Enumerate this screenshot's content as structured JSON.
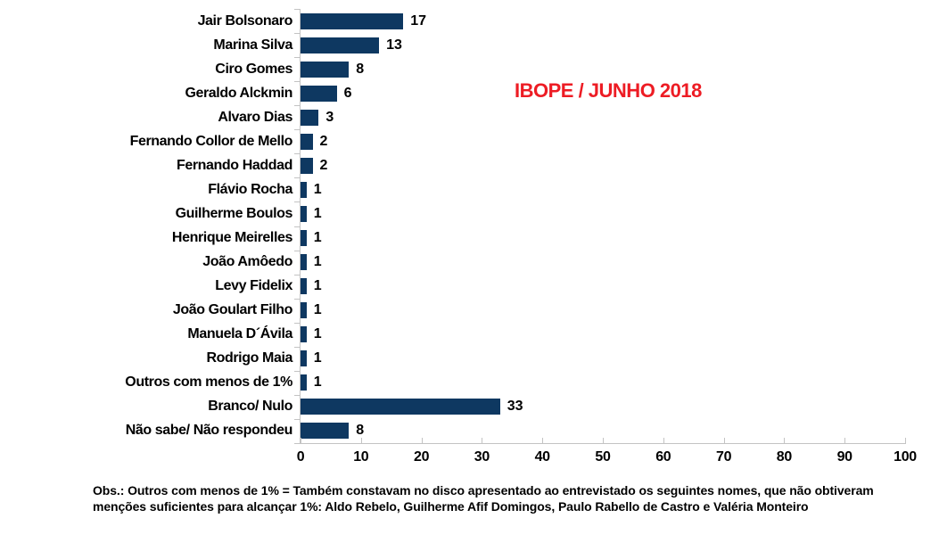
{
  "annotation": {
    "label": "IBOPE / JUNHO 2018",
    "color": "#ED1C24"
  },
  "footer": {
    "note": "Obs.: Outros com menos de 1% = Também constavam no disco apresentado ao entrevistado os seguintes nomes, que não obtiveram menções suficientes para alcançar 1%: Aldo Rebelo, Guilherme Afif Domingos, Paulo Rabello de Castro e Valéria Monteiro"
  },
  "chart_data": {
    "type": "bar",
    "orientation": "horizontal",
    "title": "",
    "annotation": "IBOPE / JUNHO 2018",
    "categories": [
      "Jair Bolsonaro",
      "Marina Silva",
      "Ciro Gomes",
      "Geraldo Alckmin",
      "Alvaro Dias",
      "Fernando Collor de Mello",
      "Fernando Haddad",
      "Flávio Rocha",
      "Guilherme Boulos",
      "Henrique Meirelles",
      "João Amôedo",
      "Levy Fidelix",
      "João Goulart Filho",
      "Manuela D´Ávila",
      "Rodrigo Maia",
      "Outros com menos de 1%",
      "Branco/ Nulo",
      "Não sabe/ Não respondeu"
    ],
    "values": [
      17,
      13,
      8,
      6,
      3,
      2,
      2,
      1,
      1,
      1,
      1,
      1,
      1,
      1,
      1,
      1,
      33,
      8
    ],
    "value_labels": [
      "17",
      "13",
      "8",
      "6",
      "3",
      "2",
      "2",
      "1",
      "1",
      "1",
      "1",
      "1",
      "1",
      "1",
      "1",
      "1",
      "33",
      "8"
    ],
    "xlim": [
      0,
      100
    ],
    "x_ticks": [
      0,
      10,
      20,
      30,
      40,
      50,
      60,
      70,
      80,
      90,
      100
    ],
    "xlabel": "",
    "ylabel": "",
    "grid": false,
    "legend": false,
    "data_label_position": "outside-end",
    "bar_color": "#0E3861",
    "axis_color": "#C3C3C3",
    "text_color": "#000000",
    "background_color": "#FFFFFF"
  }
}
